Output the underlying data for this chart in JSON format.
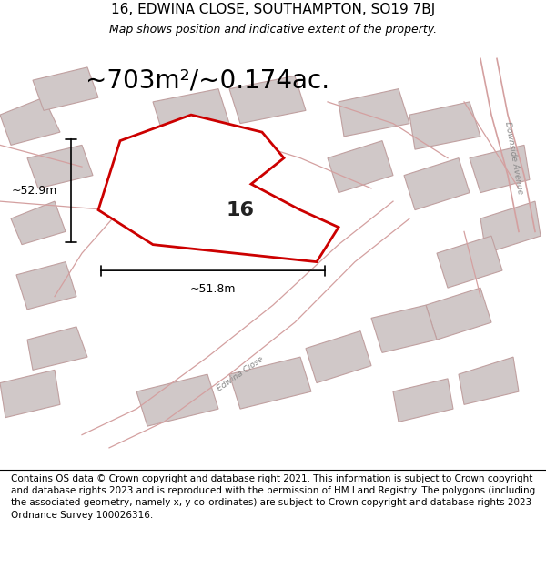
{
  "title": "16, EDWINA CLOSE, SOUTHAMPTON, SO19 7BJ",
  "subtitle": "Map shows position and indicative extent of the property.",
  "area_text": "~703m²/~0.174ac.",
  "number_label": "16",
  "dim_width": "~51.8m",
  "dim_height": "~52.9m",
  "footer": "Contains OS data © Crown copyright and database right 2021. This information is subject to Crown copyright and database rights 2023 and is reproduced with the permission of HM Land Registry. The polygons (including the associated geometry, namely x, y co-ordinates) are subject to Crown copyright and database rights 2023 Ordnance Survey 100026316.",
  "bg_map_color": "#f5f0f0",
  "plot_fill": "#ffffff",
  "plot_edge": "#cc0000",
  "road_color": "#e8c8c8",
  "building_fill": "#d8d0d0",
  "building_edge": "#cc9999",
  "street_label_downside": "Downside Avenue",
  "street_label_edwina": "Edwina Close",
  "title_fontsize": 11,
  "subtitle_fontsize": 9,
  "area_fontsize": 20,
  "footer_fontsize": 7.5
}
